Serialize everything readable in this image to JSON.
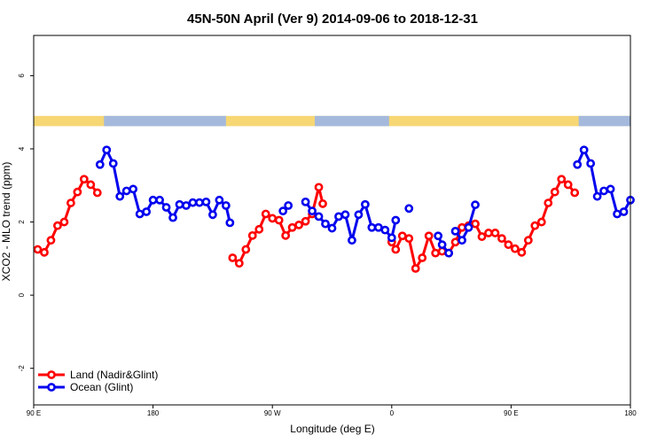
{
  "chart_data": {
    "type": "line",
    "title": "45N-50N April (Ver 9)   2014-09-06 to 2018-12-31",
    "xlabel": "Longitude (deg E)",
    "ylabel": "XCO2 - MLO trend (ppm)",
    "xlim": [
      90,
      540
    ],
    "ylim": [
      -3,
      7.1
    ],
    "x_ticks": [
      {
        "value": 90,
        "label": "90 E"
      },
      {
        "value": 180,
        "label": "180"
      },
      {
        "value": 270,
        "label": "90 W"
      },
      {
        "value": 360,
        "label": "0"
      },
      {
        "value": 450,
        "label": "90 E"
      },
      {
        "value": 540,
        "label": "180"
      }
    ],
    "y_ticks": [
      {
        "value": -2,
        "label": "-2"
      },
      {
        "value": 0,
        "label": "0"
      },
      {
        "value": 2,
        "label": "2"
      },
      {
        "value": 4,
        "label": "4"
      },
      {
        "value": 6,
        "label": "6"
      }
    ],
    "landmask": {
      "y_range": [
        4.62,
        4.9
      ],
      "land_color": "#f7d774",
      "ocean_color": "#a4b9dc",
      "ocean_spans": [
        [
          143,
          235
        ],
        [
          302,
          358
        ],
        [
          501,
          540
        ]
      ]
    },
    "legend": {
      "position": "bottom-left",
      "entries": [
        {
          "label": "Land (Nadir&Glint)",
          "color": "#ff0000"
        },
        {
          "label": "Ocean (Glint)",
          "color": "#0000ee"
        }
      ]
    },
    "series": [
      {
        "name": "Land (Nadir&Glint)",
        "color": "#ff0000",
        "segments": [
          [
            [
              93,
              1.25
            ],
            [
              98,
              1.17
            ],
            [
              103,
              1.5
            ],
            [
              108,
              1.9
            ],
            [
              113,
              2.0
            ],
            [
              118,
              2.52
            ],
            [
              123,
              2.82
            ],
            [
              128,
              3.17
            ],
            [
              133,
              3.02
            ],
            [
              138,
              2.8
            ]
          ],
          [
            [
              240,
              1.02
            ],
            [
              245,
              0.87
            ],
            [
              250,
              1.25
            ],
            [
              255,
              1.63
            ],
            [
              260,
              1.8
            ],
            [
              265,
              2.22
            ],
            [
              270,
              2.1
            ],
            [
              275,
              2.05
            ],
            [
              280,
              1.63
            ],
            [
              285,
              1.85
            ],
            [
              290,
              1.92
            ],
            [
              295,
              2.02
            ],
            [
              300,
              2.22
            ],
            [
              305,
              2.95
            ],
            [
              308,
              2.5
            ]
          ],
          [
            [
              360,
              1.45
            ],
            [
              363,
              1.25
            ],
            [
              368,
              1.62
            ],
            [
              373,
              1.55
            ],
            [
              378,
              0.73
            ],
            [
              383,
              1.02
            ],
            [
              388,
              1.62
            ],
            [
              393,
              1.15
            ],
            [
              398,
              1.2
            ],
            [
              403,
              1.15
            ],
            [
              408,
              1.45
            ],
            [
              413,
              1.85
            ],
            [
              418,
              1.9
            ],
            [
              423,
              1.95
            ],
            [
              428,
              1.6
            ],
            [
              433,
              1.7
            ],
            [
              438,
              1.7
            ],
            [
              443,
              1.55
            ],
            [
              448,
              1.38
            ],
            [
              453,
              1.27
            ],
            [
              458,
              1.17
            ],
            [
              463,
              1.5
            ],
            [
              468,
              1.9
            ],
            [
              473,
              2.0
            ],
            [
              478,
              2.52
            ],
            [
              483,
              2.82
            ],
            [
              488,
              3.17
            ],
            [
              493,
              3.02
            ],
            [
              498,
              2.8
            ]
          ]
        ]
      },
      {
        "name": "Ocean (Glint)",
        "color": "#0000ee",
        "segments": [
          [
            [
              140,
              3.57
            ],
            [
              145,
              3.97
            ],
            [
              150,
              3.6
            ],
            [
              155,
              2.7
            ],
            [
              160,
              2.85
            ],
            [
              165,
              2.9
            ],
            [
              170,
              2.22
            ],
            [
              175,
              2.28
            ],
            [
              180,
              2.6
            ],
            [
              185,
              2.6
            ],
            [
              190,
              2.4
            ],
            [
              195,
              2.12
            ],
            [
              200,
              2.48
            ],
            [
              205,
              2.45
            ],
            [
              210,
              2.53
            ],
            [
              215,
              2.53
            ],
            [
              220,
              2.55
            ],
            [
              225,
              2.2
            ],
            [
              230,
              2.6
            ],
            [
              235,
              2.45
            ],
            [
              238,
              1.98
            ]
          ],
          [
            [
              278,
              2.3
            ],
            [
              282,
              2.45
            ]
          ],
          [
            [
              295,
              2.55
            ],
            [
              300,
              2.3
            ],
            [
              305,
              2.15
            ],
            [
              310,
              1.95
            ],
            [
              315,
              1.83
            ],
            [
              320,
              2.15
            ],
            [
              325,
              2.2
            ],
            [
              330,
              1.5
            ],
            [
              335,
              2.2
            ],
            [
              340,
              2.48
            ],
            [
              345,
              1.85
            ],
            [
              350,
              1.85
            ],
            [
              355,
              1.78
            ],
            [
              360,
              1.57
            ],
            [
              363,
              2.05
            ]
          ],
          [
            [
              373,
              2.37
            ]
          ],
          [
            [
              395,
              1.62
            ],
            [
              398,
              1.38
            ],
            [
              403,
              1.15
            ]
          ],
          [
            [
              408,
              1.75
            ],
            [
              413,
              1.5
            ],
            [
              418,
              1.85
            ],
            [
              423,
              2.47
            ]
          ],
          [
            [
              500,
              3.57
            ],
            [
              505,
              3.97
            ],
            [
              510,
              3.6
            ],
            [
              515,
              2.7
            ],
            [
              520,
              2.85
            ],
            [
              525,
              2.9
            ],
            [
              530,
              2.22
            ],
            [
              535,
              2.28
            ],
            [
              540,
              2.6
            ]
          ]
        ]
      }
    ]
  }
}
